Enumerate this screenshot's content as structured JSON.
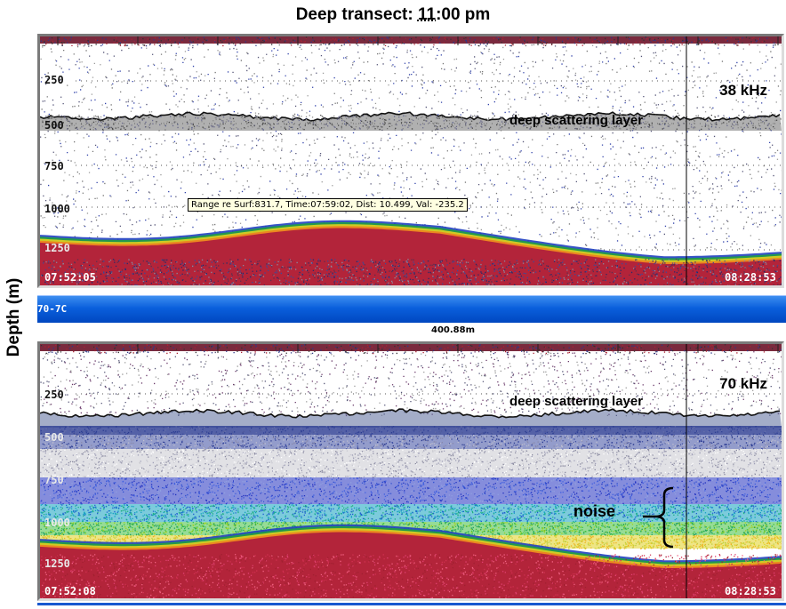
{
  "title": {
    "prefix": "Deep transect:  ",
    "hour": "11",
    "rest": ":00 pm"
  },
  "y_axis_label": "Depth (m)",
  "panels": [
    {
      "frequency": "38 kHz",
      "annotation": "deep scattering layer",
      "depth_ticks": [
        "250",
        "500",
        "750",
        "1000",
        "1250"
      ],
      "start_time": "07:52:05",
      "end_time": "08:28:53",
      "tooltip": "Range re Surf:831.7, Time:07:59:02, Dist: 10.499, Val: -235.2"
    },
    {
      "frequency": "70 kHz",
      "annotation": "deep scattering layer",
      "depth_ticks": [
        "250",
        "500",
        "750",
        "1000",
        "1250"
      ],
      "start_time": "07:52:08",
      "end_time": "08:28:53",
      "noise_label": "noise"
    }
  ],
  "status_bar": {
    "text": "70-7C"
  },
  "scale_label": "400.88m",
  "colors": {
    "bar_blue": "#0a5fdc",
    "seabed_red": "#b3243a",
    "dsl_gray": "#6f6f6f"
  }
}
